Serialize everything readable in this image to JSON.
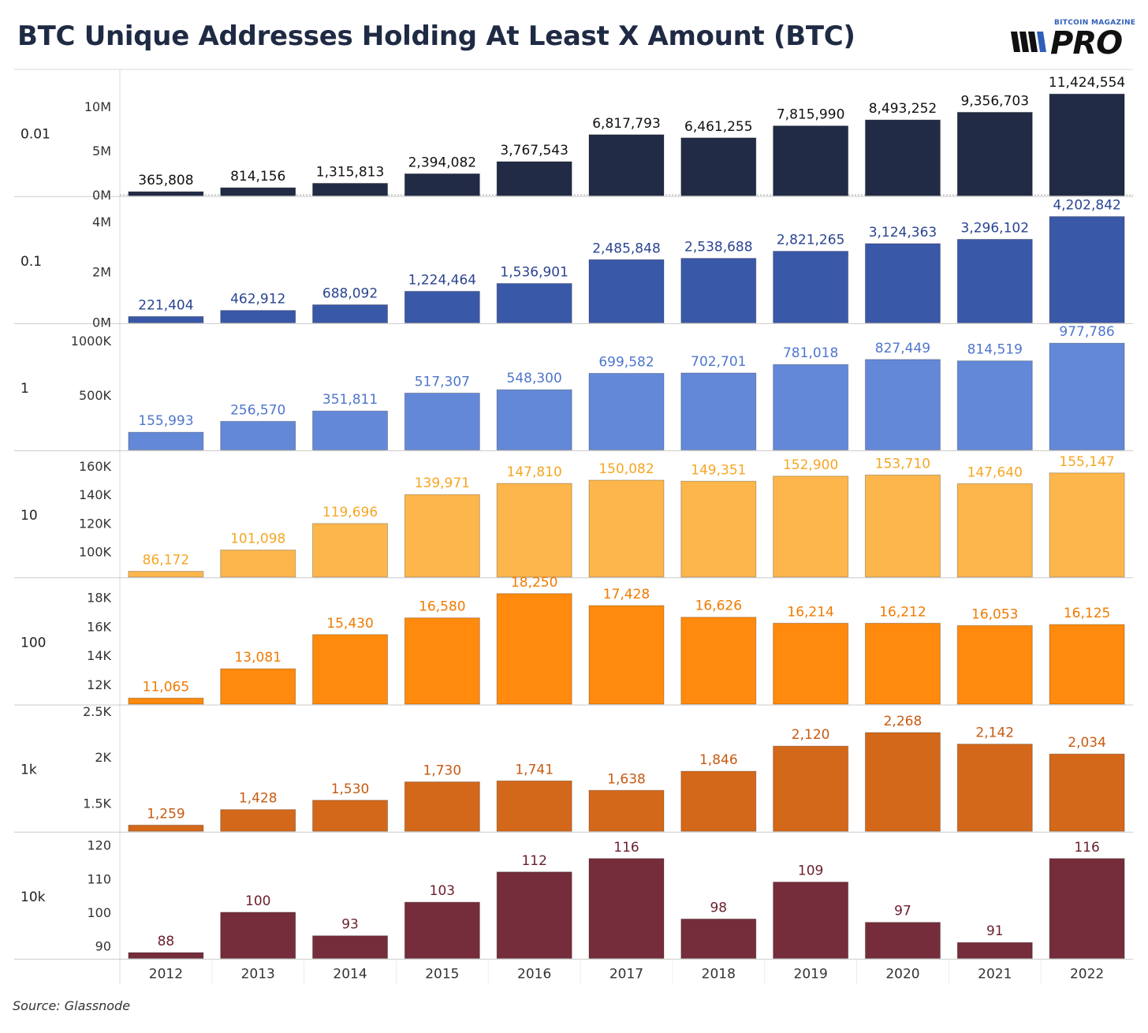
{
  "title": "BTC Unique Addresses Holding At Least X Amount (BTC)",
  "source": "Source: Glassnode",
  "logo": {
    "top_text": "BITCOIN MAGAZINE",
    "main_text": "PRO"
  },
  "chart_data": {
    "type": "bar",
    "categories": [
      "2012",
      "2013",
      "2014",
      "2015",
      "2016",
      "2017",
      "2018",
      "2019",
      "2020",
      "2021",
      "2022"
    ],
    "panels": [
      {
        "row_label": "0.01",
        "color": "#222b45",
        "label_color": "#111111",
        "ylim": [
          0,
          13500000
        ],
        "ticks": [
          0,
          5000000,
          10000000
        ],
        "tick_labels": [
          "0M",
          "5M",
          "10M"
        ],
        "values": [
          365808,
          814156,
          1315813,
          2394082,
          3767543,
          6817793,
          6461255,
          7815990,
          8493252,
          9356703,
          11424554
        ],
        "value_labels": [
          "365,808",
          "814,156",
          "1,315,813",
          "2,394,082",
          "3,767,543",
          "6,817,793",
          "6,461,255",
          "7,815,990",
          "8,493,252",
          "9,356,703",
          "11,424,554"
        ]
      },
      {
        "row_label": "0.1",
        "color": "#3a58a8",
        "label_color": "#2a4490",
        "ylim": [
          0,
          4750000
        ],
        "ticks": [
          0,
          2000000,
          4000000
        ],
        "tick_labels": [
          "0M",
          "2M",
          "4M"
        ],
        "values": [
          221404,
          462912,
          688092,
          1224464,
          1536901,
          2485848,
          2538688,
          2821265,
          3124363,
          3296102,
          4202842
        ],
        "value_labels": [
          "221,404",
          "462,912",
          "688,092",
          "1,224,464",
          "1,536,901",
          "2,485,848",
          "2,538,688",
          "2,821,265",
          "3,124,363",
          "3,296,102",
          "4,202,842"
        ]
      },
      {
        "row_label": "1",
        "color": "#6388d8",
        "label_color": "#4f76cc",
        "ylim": [
          0,
          1100000
        ],
        "ticks": [
          500000,
          1000000
        ],
        "tick_labels": [
          "500K",
          "1000K"
        ],
        "values": [
          155993,
          256570,
          351811,
          517307,
          548300,
          699582,
          702701,
          781018,
          827449,
          814519,
          977786
        ],
        "value_labels": [
          "155,993",
          "256,570",
          "351,811",
          "517,307",
          "548,300",
          "699,582",
          "702,701",
          "781,018",
          "827,449",
          "814,519",
          "977,786"
        ]
      },
      {
        "row_label": "10",
        "color": "#fdb64b",
        "label_color": "#f5a623",
        "ylim": [
          82700,
          166300
        ],
        "ticks": [
          100000,
          120000,
          140000,
          160000
        ],
        "tick_labels": [
          "100K",
          "120K",
          "140K",
          "160K"
        ],
        "values": [
          86172,
          101098,
          119696,
          139971,
          147810,
          150082,
          149351,
          152900,
          153710,
          147640,
          155147
        ],
        "value_labels": [
          "86,172",
          "101,098",
          "119,696",
          "139,971",
          "147,810",
          "150,082",
          "149,351",
          "152,900",
          "153,710",
          "147,640",
          "155,147"
        ]
      },
      {
        "row_label": "100",
        "color": "#ff8a0d",
        "label_color": "#f07a00",
        "ylim": [
          10700,
          18900
        ],
        "ticks": [
          12000,
          14000,
          16000,
          18000
        ],
        "tick_labels": [
          "12K",
          "14K",
          "16K",
          "18K"
        ],
        "values": [
          11065,
          13081,
          15430,
          16580,
          18250,
          17428,
          16626,
          16214,
          16212,
          16053,
          16125
        ],
        "value_labels": [
          "11,065",
          "13,081",
          "15,430",
          "16,580",
          "18,250",
          "17,428",
          "16,626",
          "16,214",
          "16,212",
          "16,053",
          "16,125"
        ]
      },
      {
        "row_label": "1k",
        "color": "#d4681a",
        "label_color": "#c85a10",
        "ylim": [
          1200,
          2500
        ],
        "ticks": [
          1500,
          2000,
          2500
        ],
        "tick_labels": [
          "1.5K",
          "2K",
          "2.5K"
        ],
        "values": [
          1259,
          1428,
          1530,
          1730,
          1741,
          1638,
          1846,
          2120,
          2268,
          2142,
          2034
        ],
        "value_labels": [
          "1,259",
          "1,428",
          "1,530",
          "1,730",
          "1,741",
          "1,638",
          "1,846",
          "2,120",
          "2,268",
          "2,142",
          "2,034"
        ]
      },
      {
        "row_label": "10k",
        "color": "#752d3b",
        "label_color": "#6a1f2c",
        "ylim": [
          86.5,
          122
        ],
        "ticks": [
          90,
          100,
          110,
          120
        ],
        "tick_labels": [
          "90",
          "100",
          "110",
          "120"
        ],
        "values": [
          88,
          100,
          93,
          103,
          112,
          116,
          98,
          109,
          97,
          91,
          116
        ],
        "value_labels": [
          "88",
          "100",
          "93",
          "103",
          "112",
          "116",
          "98",
          "109",
          "97",
          "91",
          "116"
        ]
      }
    ],
    "grid": false,
    "legend": "none"
  }
}
